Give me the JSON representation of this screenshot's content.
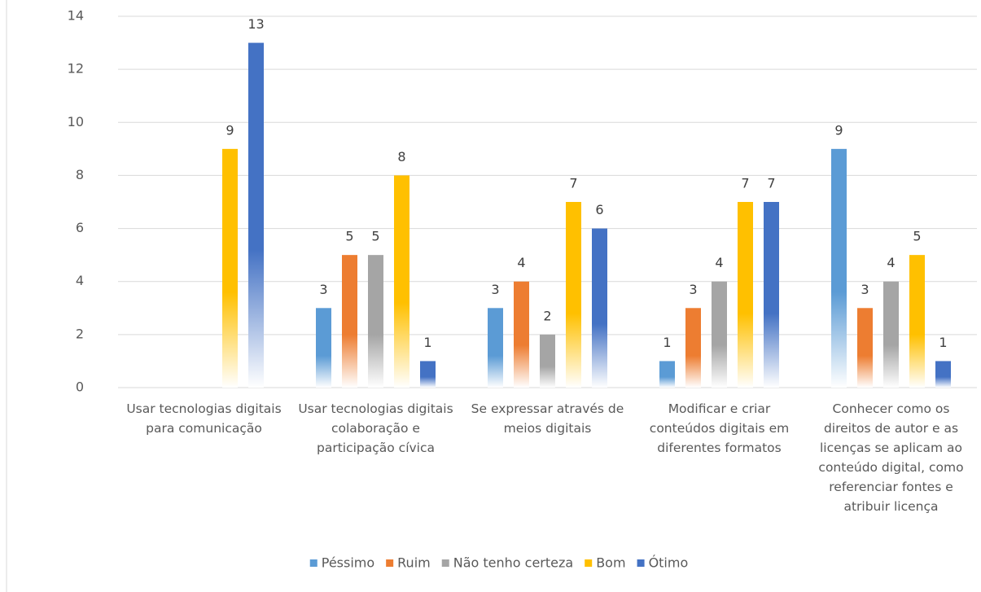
{
  "chart_data": {
    "type": "bar",
    "categories": [
      "Usar tecnologias digitais para comunicação",
      "Usar tecnologias digitais colaboração e participação cívica",
      "Se expressar através de meios digitais",
      "Modificar e criar conteúdos digitais em diferentes formatos",
      "Conhecer como os direitos de autor e as licenças se aplicam ao conteúdo digital, como referenciar fontes e atribuir licença"
    ],
    "series": [
      {
        "name": "Péssimo",
        "color": "#5b9bd5",
        "values": [
          null,
          3,
          3,
          1,
          9
        ]
      },
      {
        "name": "Ruim",
        "color": "#ed7d31",
        "values": [
          null,
          5,
          4,
          3,
          3
        ]
      },
      {
        "name": "Não tenho certeza",
        "color": "#a5a5a5",
        "values": [
          null,
          5,
          2,
          4,
          4
        ]
      },
      {
        "name": "Bom",
        "color": "#ffc000",
        "values": [
          9,
          8,
          7,
          7,
          5
        ]
      },
      {
        "name": "Ótimo",
        "color": "#4472c4",
        "values": [
          13,
          1,
          6,
          7,
          1
        ]
      }
    ],
    "ylim": [
      0,
      14
    ],
    "yticks": [
      0,
      2,
      4,
      6,
      8,
      10,
      12,
      14
    ],
    "grid": true,
    "legend": "bottom",
    "gradient": true
  }
}
